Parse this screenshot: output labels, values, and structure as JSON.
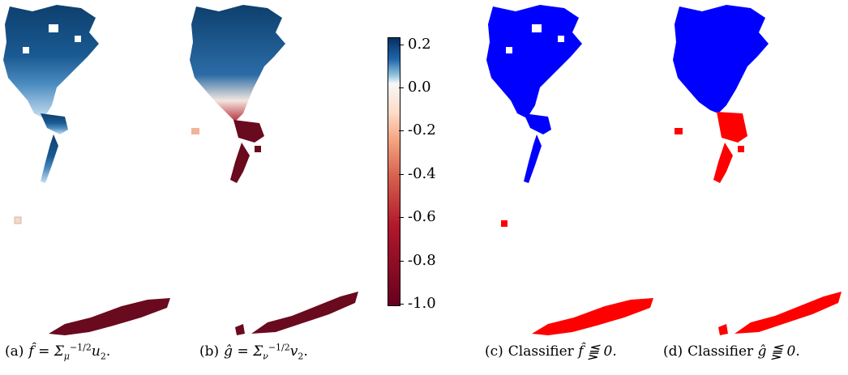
{
  "panels": [
    {
      "id": "a",
      "label": "(a)",
      "formula": "f̂ = Σ",
      "sub": "μ",
      "sup": "−1/2",
      "rest": "u",
      "rest_sub": "2",
      "end": "."
    },
    {
      "id": "b",
      "label": "(b)",
      "formula": "ĝ = Σ",
      "sub": "ν",
      "sup": "−1/2",
      "rest": "v",
      "rest_sub": "2",
      "end": "."
    },
    {
      "id": "c",
      "label": "(c)",
      "text": "Classifier",
      "math": "f̂ ⪋ 0."
    },
    {
      "id": "d",
      "label": "(d)",
      "text": "Classifier",
      "math": "ĝ ⪋ 0."
    }
  ],
  "colorbar": {
    "ticks": [
      "0.2",
      "0.0",
      "-0.2",
      "-0.4",
      "-0.6",
      "-0.8",
      "-1.0"
    ],
    "min": -1.0,
    "max": 0.2,
    "colormap": "RdBu",
    "colors": {
      "top": "#053061",
      "mid": "#f7f7f7",
      "bottom": "#67001f"
    }
  },
  "colors": {
    "blue_class": "#0000ff",
    "red_class": "#ff0000",
    "dark_blue": "#0d3f6e",
    "dark_red": "#6a0a1e"
  }
}
